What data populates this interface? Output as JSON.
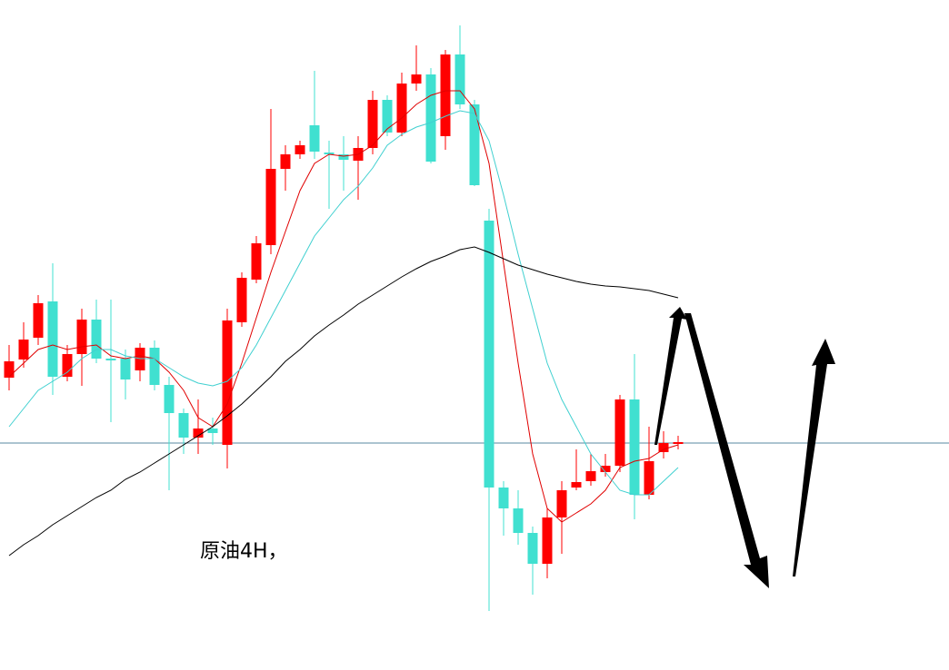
{
  "chart_data": {
    "type": "candlestick",
    "label": "原油4H，",
    "ylim": [
      0,
      738
    ],
    "up_color": "#ff0000",
    "down_color": "#40e0d0",
    "open": [
      322,
      342,
      366,
      406,
      323,
      348,
      386,
      343,
      343,
      330,
      355,
      314,
      283,
      256,
      266,
      248,
      383,
      430,
      468,
      552,
      568,
      600,
      570,
      568,
      561,
      575,
      628,
      592,
      646,
      656,
      588,
      678,
      623,
      495,
      201,
      178,
      151,
      117,
      168,
      201,
      208,
      218,
      225,
      298,
      193,
      240,
      249
    ],
    "high": [
      358,
      383,
      413,
      448,
      358,
      398,
      408,
      408,
      353,
      360,
      363,
      323,
      288,
      298,
      278,
      398,
      438,
      478,
      618,
      578,
      583,
      660,
      583,
      588,
      588,
      638,
      633,
      658,
      688,
      663,
      683,
      710,
      628,
      508,
      208,
      198,
      158,
      178,
      208,
      243,
      238,
      238,
      303,
      348,
      268,
      263,
      258
    ],
    "low": [
      308,
      333,
      358,
      303,
      318,
      313,
      338,
      273,
      298,
      318,
      308,
      198,
      238,
      238,
      248,
      222,
      378,
      426,
      458,
      528,
      563,
      563,
      508,
      528,
      518,
      568,
      588,
      588,
      638,
      558,
      573,
      618,
      533,
      65,
      148,
      138,
      83,
      101,
      128,
      198,
      203,
      213,
      218,
      166,
      188,
      233,
      243
    ],
    "close": [
      340,
      364,
      404,
      323,
      348,
      386,
      343,
      342,
      320,
      355,
      314,
      283,
      256,
      266,
      261,
      385,
      432,
      470,
      552,
      568,
      578,
      571,
      568,
      562,
      575,
      628,
      592,
      646,
      656,
      560,
      678,
      623,
      534,
      201,
      178,
      151,
      117,
      168,
      198,
      207,
      219,
      225,
      298,
      193,
      230,
      250,
      251
    ],
    "series": [
      {
        "color": "#e00000",
        "values": [
          323,
          338,
          353,
          358,
          353,
          356,
          358,
          346,
          343,
          346,
          343,
          328,
          308,
          278,
          268,
          293,
          338,
          388,
          438,
          483,
          528,
          558,
          568,
          566,
          568,
          578,
          596,
          608,
          623,
          633,
          638,
          638,
          618,
          558,
          448,
          338,
          238,
          178,
          163,
          173,
          183,
          198,
          223,
          230,
          233,
          243,
          248
        ]
      },
      {
        "color": "#40d0d0",
        "values": [
          268,
          288,
          308,
          318,
          328,
          343,
          353,
          353,
          346,
          343,
          343,
          333,
          323,
          316,
          313,
          318,
          333,
          358,
          388,
          418,
          448,
          478,
          498,
          518,
          533,
          553,
          578,
          590,
          598,
          603,
          610,
          616,
          613,
          583,
          523,
          458,
          398,
          338,
          298,
          268,
          238,
          218,
          198,
          193,
          193,
          208,
          223
        ]
      },
      {
        "color": "#000000",
        "values": [
          126,
          138,
          148,
          160,
          170,
          180,
          190,
          198,
          210,
          218,
          228,
          238,
          248,
          258,
          268,
          280,
          293,
          308,
          323,
          340,
          353,
          368,
          380,
          391,
          403,
          413,
          423,
          433,
          442,
          450,
          456,
          463,
          466,
          460,
          453,
          446,
          441,
          436,
          432,
          428,
          425,
          423,
          422,
          420,
          418,
          414,
          410
        ]
      }
    ],
    "hline": 250,
    "hline_color": "#5a8aa0"
  }
}
